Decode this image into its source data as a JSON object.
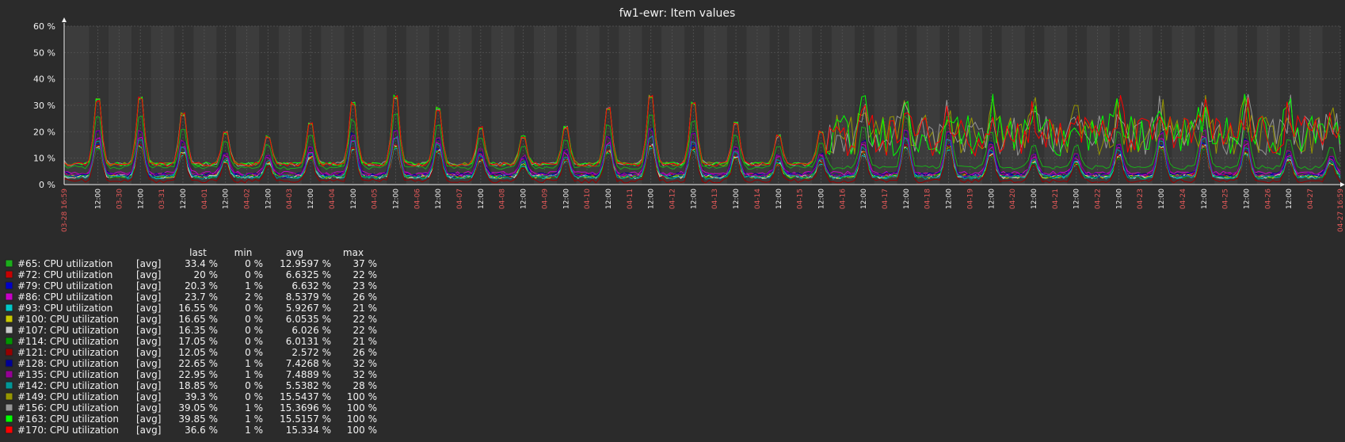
{
  "title": "fw1-ewr: Item values",
  "chart_data": {
    "type": "line",
    "title": "fw1-ewr: Item values",
    "ylim": [
      0,
      60
    ],
    "y_unit": "%",
    "y_ticks": [
      "0 %",
      "10 %",
      "20 %",
      "30 %",
      "40 %",
      "50 %",
      "60 %"
    ],
    "x_range": [
      "03-28 16:59",
      "04-27 16:59"
    ],
    "x_tick_labels": [
      "03-28 16:59",
      "12:00",
      "03-30",
      "12:00",
      "03-31",
      "12:00",
      "04-01",
      "12:00",
      "04-02",
      "12:00",
      "04-03",
      "12:00",
      "04-04",
      "12:00",
      "04-05",
      "12:00",
      "04-06",
      "12:00",
      "04-07",
      "12:00",
      "04-08",
      "12:00",
      "04-09",
      "12:00",
      "04-10",
      "12:00",
      "04-11",
      "12:00",
      "04-12",
      "12:00",
      "04-13",
      "12:00",
      "04-14",
      "12:00",
      "04-15",
      "12:00",
      "04-16",
      "12:00",
      "04-17",
      "12:00",
      "04-18",
      "12:00",
      "04-19",
      "12:00",
      "04-20",
      "12:00",
      "04-21",
      "12:00",
      "04-22",
      "12:00",
      "04-23",
      "12:00",
      "04-24",
      "12:00",
      "04-25",
      "12:00",
      "04-26",
      "12:00",
      "04-27",
      "04-27 16:59"
    ],
    "grid": true,
    "legend_position": "bottom-left",
    "legend_header": {
      "last": "last",
      "min": "min",
      "avg": "avg",
      "max": "max"
    },
    "series": [
      {
        "name": "#65: CPU utilization",
        "func": "[avg]",
        "last": "33.4 %",
        "min": "0 %",
        "avg": "12.9597 %",
        "max": "37 %",
        "color": "#1aaf1a"
      },
      {
        "name": "#72: CPU utilization",
        "func": "[avg]",
        "last": "20 %",
        "min": "0 %",
        "avg": "6.6325 %",
        "max": "22 %",
        "color": "#c80000"
      },
      {
        "name": "#79: CPU utilization",
        "func": "[avg]",
        "last": "20.3 %",
        "min": "1 %",
        "avg": "6.632 %",
        "max": "23 %",
        "color": "#0000c8"
      },
      {
        "name": "#86: CPU utilization",
        "func": "[avg]",
        "last": "23.7 %",
        "min": "2 %",
        "avg": "8.5379 %",
        "max": "26 %",
        "color": "#c800c8"
      },
      {
        "name": "#93: CPU utilization",
        "func": "[avg]",
        "last": "16.55 %",
        "min": "0 %",
        "avg": "5.9267 %",
        "max": "21 %",
        "color": "#00c8c8"
      },
      {
        "name": "#100: CPU utilization",
        "func": "[avg]",
        "last": "16.65 %",
        "min": "0 %",
        "avg": "6.0535 %",
        "max": "22 %",
        "color": "#c8c800"
      },
      {
        "name": "#107: CPU utilization",
        "func": "[avg]",
        "last": "16.35 %",
        "min": "0 %",
        "avg": "6.026 %",
        "max": "22 %",
        "color": "#c8c8c8"
      },
      {
        "name": "#114: CPU utilization",
        "func": "[avg]",
        "last": "17.05 %",
        "min": "0 %",
        "avg": "6.0131 %",
        "max": "21 %",
        "color": "#009600"
      },
      {
        "name": "#121: CPU utilization",
        "func": "[avg]",
        "last": "12.05 %",
        "min": "0 %",
        "avg": "2.572 %",
        "max": "26 %",
        "color": "#960000"
      },
      {
        "name": "#128: CPU utilization",
        "func": "[avg]",
        "last": "22.65 %",
        "min": "1 %",
        "avg": "7.4268 %",
        "max": "32 %",
        "color": "#000096"
      },
      {
        "name": "#135: CPU utilization",
        "func": "[avg]",
        "last": "22.95 %",
        "min": "1 %",
        "avg": "7.4889 %",
        "max": "32 %",
        "color": "#960096"
      },
      {
        "name": "#142: CPU utilization",
        "func": "[avg]",
        "last": "18.85 %",
        "min": "0 %",
        "avg": "5.5382 %",
        "max": "28 %",
        "color": "#009696"
      },
      {
        "name": "#149: CPU utilization",
        "func": "[avg]",
        "last": "39.3 %",
        "min": "0 %",
        "avg": "15.5437 %",
        "max": "100 %",
        "color": "#969600"
      },
      {
        "name": "#156: CPU utilization",
        "func": "[avg]",
        "last": "39.05 %",
        "min": "1 %",
        "avg": "15.3696 %",
        "max": "100 %",
        "color": "#969696"
      },
      {
        "name": "#163: CPU utilization",
        "func": "[avg]",
        "last": "39.85 %",
        "min": "1 %",
        "avg": "15.5157 %",
        "max": "100 %",
        "color": "#00ff00"
      },
      {
        "name": "#170: CPU utilization",
        "func": "[avg]",
        "last": "36.6 %",
        "min": "1 %",
        "avg": "15.334 %",
        "max": "100 %",
        "color": "#ff0000"
      }
    ]
  }
}
